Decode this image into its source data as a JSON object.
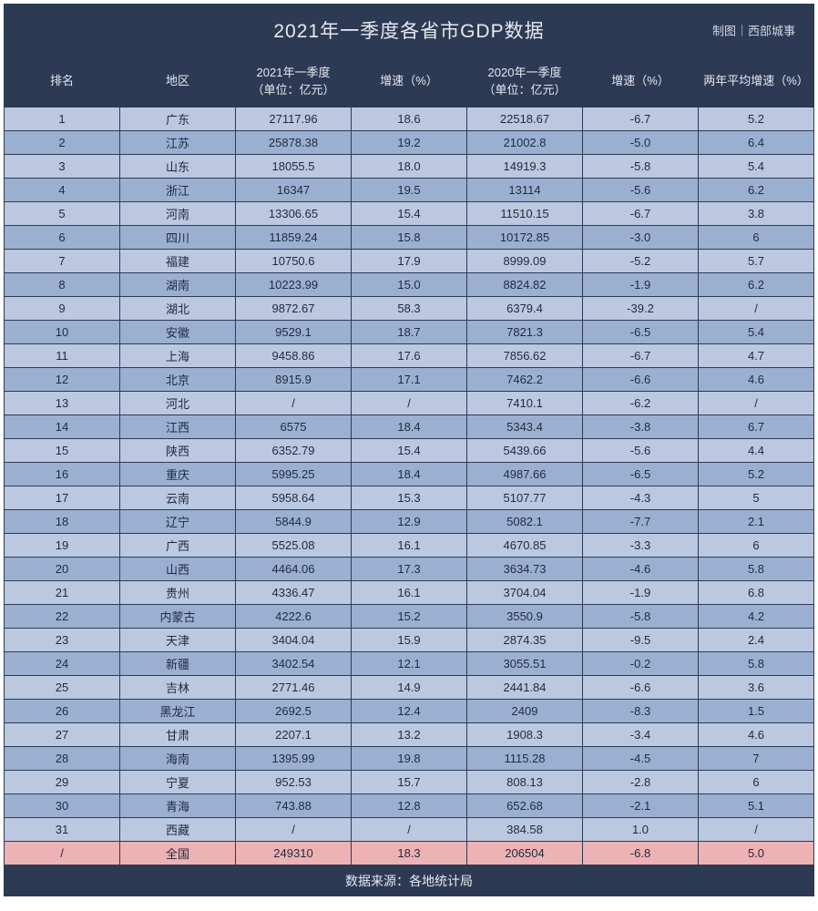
{
  "title": "2021年一季度各省市GDP数据",
  "credit": "制图｜西部城事",
  "source": "数据来源：各地统计局",
  "columns": [
    "排名",
    "地区",
    "2021年一季度\n（单位：亿元）",
    "增速（%）",
    "2020年一季度\n（单位：亿元）",
    "增速（%）",
    "两年平均增速（%）"
  ],
  "col_widths_class": [
    "c0",
    "c1",
    "c2",
    "c3",
    "c4",
    "c5",
    "c6"
  ],
  "colors": {
    "header_bg": "#2d3a54",
    "header_text": "#e6e9f0",
    "row_light": "#bcc8e0",
    "row_dark": "#9bb0d1",
    "row_total": "#edb2b4",
    "border": "#2d3a54"
  },
  "font_sizes": {
    "title": 21,
    "header": 13,
    "cell": 13,
    "source": 14
  },
  "rows": [
    {
      "rank": "1",
      "region": "广东",
      "gdp2021": "27117.96",
      "growth2021": "18.6",
      "gdp2020": "22518.67",
      "growth2020": "-6.7",
      "avg": "5.2"
    },
    {
      "rank": "2",
      "region": "江苏",
      "gdp2021": "25878.38",
      "growth2021": "19.2",
      "gdp2020": "21002.8",
      "growth2020": "-5.0",
      "avg": "6.4"
    },
    {
      "rank": "3",
      "region": "山东",
      "gdp2021": "18055.5",
      "growth2021": "18.0",
      "gdp2020": "14919.3",
      "growth2020": "-5.8",
      "avg": "5.4"
    },
    {
      "rank": "4",
      "region": "浙江",
      "gdp2021": "16347",
      "growth2021": "19.5",
      "gdp2020": "13114",
      "growth2020": "-5.6",
      "avg": "6.2"
    },
    {
      "rank": "5",
      "region": "河南",
      "gdp2021": "13306.65",
      "growth2021": "15.4",
      "gdp2020": "11510.15",
      "growth2020": "-6.7",
      "avg": "3.8"
    },
    {
      "rank": "6",
      "region": "四川",
      "gdp2021": "11859.24",
      "growth2021": "15.8",
      "gdp2020": "10172.85",
      "growth2020": "-3.0",
      "avg": "6"
    },
    {
      "rank": "7",
      "region": "福建",
      "gdp2021": "10750.6",
      "growth2021": "17.9",
      "gdp2020": "8999.09",
      "growth2020": "-5.2",
      "avg": "5.7"
    },
    {
      "rank": "8",
      "region": "湖南",
      "gdp2021": "10223.99",
      "growth2021": "15.0",
      "gdp2020": "8824.82",
      "growth2020": "-1.9",
      "avg": "6.2"
    },
    {
      "rank": "9",
      "region": "湖北",
      "gdp2021": "9872.67",
      "growth2021": "58.3",
      "gdp2020": "6379.4",
      "growth2020": "-39.2",
      "avg": "/"
    },
    {
      "rank": "10",
      "region": "安徽",
      "gdp2021": "9529.1",
      "growth2021": "18.7",
      "gdp2020": "7821.3",
      "growth2020": "-6.5",
      "avg": "5.4"
    },
    {
      "rank": "11",
      "region": "上海",
      "gdp2021": "9458.86",
      "growth2021": "17.6",
      "gdp2020": "7856.62",
      "growth2020": "-6.7",
      "avg": "4.7"
    },
    {
      "rank": "12",
      "region": "北京",
      "gdp2021": "8915.9",
      "growth2021": "17.1",
      "gdp2020": "7462.2",
      "growth2020": "-6.6",
      "avg": "4.6"
    },
    {
      "rank": "13",
      "region": "河北",
      "gdp2021": "/",
      "growth2021": "/",
      "gdp2020": "7410.1",
      "growth2020": "-6.2",
      "avg": "/"
    },
    {
      "rank": "14",
      "region": "江西",
      "gdp2021": "6575",
      "growth2021": "18.4",
      "gdp2020": "5343.4",
      "growth2020": "-3.8",
      "avg": "6.7"
    },
    {
      "rank": "15",
      "region": "陕西",
      "gdp2021": "6352.79",
      "growth2021": "15.4",
      "gdp2020": "5439.66",
      "growth2020": "-5.6",
      "avg": "4.4"
    },
    {
      "rank": "16",
      "region": "重庆",
      "gdp2021": "5995.25",
      "growth2021": "18.4",
      "gdp2020": "4987.66",
      "growth2020": "-6.5",
      "avg": "5.2"
    },
    {
      "rank": "17",
      "region": "云南",
      "gdp2021": "5958.64",
      "growth2021": "15.3",
      "gdp2020": "5107.77",
      "growth2020": "-4.3",
      "avg": "5"
    },
    {
      "rank": "18",
      "region": "辽宁",
      "gdp2021": "5844.9",
      "growth2021": "12.9",
      "gdp2020": "5082.1",
      "growth2020": "-7.7",
      "avg": "2.1"
    },
    {
      "rank": "19",
      "region": "广西",
      "gdp2021": "5525.08",
      "growth2021": "16.1",
      "gdp2020": "4670.85",
      "growth2020": "-3.3",
      "avg": "6"
    },
    {
      "rank": "20",
      "region": "山西",
      "gdp2021": "4464.06",
      "growth2021": "17.3",
      "gdp2020": "3634.73",
      "growth2020": "-4.6",
      "avg": "5.8"
    },
    {
      "rank": "21",
      "region": "贵州",
      "gdp2021": "4336.47",
      "growth2021": "16.1",
      "gdp2020": "3704.04",
      "growth2020": "-1.9",
      "avg": "6.8"
    },
    {
      "rank": "22",
      "region": "内蒙古",
      "gdp2021": "4222.6",
      "growth2021": "15.2",
      "gdp2020": "3550.9",
      "growth2020": "-5.8",
      "avg": "4.2"
    },
    {
      "rank": "23",
      "region": "天津",
      "gdp2021": "3404.04",
      "growth2021": "15.9",
      "gdp2020": "2874.35",
      "growth2020": "-9.5",
      "avg": "2.4"
    },
    {
      "rank": "24",
      "region": "新疆",
      "gdp2021": "3402.54",
      "growth2021": "12.1",
      "gdp2020": "3055.51",
      "growth2020": "-0.2",
      "avg": "5.8"
    },
    {
      "rank": "25",
      "region": "吉林",
      "gdp2021": "2771.46",
      "growth2021": "14.9",
      "gdp2020": "2441.84",
      "growth2020": "-6.6",
      "avg": "3.6"
    },
    {
      "rank": "26",
      "region": "黑龙江",
      "gdp2021": "2692.5",
      "growth2021": "12.4",
      "gdp2020": "2409",
      "growth2020": "-8.3",
      "avg": "1.5"
    },
    {
      "rank": "27",
      "region": "甘肃",
      "gdp2021": "2207.1",
      "growth2021": "13.2",
      "gdp2020": "1908.3",
      "growth2020": "-3.4",
      "avg": "4.6"
    },
    {
      "rank": "28",
      "region": "海南",
      "gdp2021": "1395.99",
      "growth2021": "19.8",
      "gdp2020": "1115.28",
      "growth2020": "-4.5",
      "avg": "7"
    },
    {
      "rank": "29",
      "region": "宁夏",
      "gdp2021": "952.53",
      "growth2021": "15.7",
      "gdp2020": "808.13",
      "growth2020": "-2.8",
      "avg": "6"
    },
    {
      "rank": "30",
      "region": "青海",
      "gdp2021": "743.88",
      "growth2021": "12.8",
      "gdp2020": "652.68",
      "growth2020": "-2.1",
      "avg": "5.1"
    },
    {
      "rank": "31",
      "region": "西藏",
      "gdp2021": "/",
      "growth2021": "/",
      "gdp2020": "384.58",
      "growth2020": "1.0",
      "avg": "/"
    }
  ],
  "total_row": {
    "rank": "/",
    "region": "全国",
    "gdp2021": "249310",
    "growth2021": "18.3",
    "gdp2020": "206504",
    "growth2020": "-6.8",
    "avg": "5.0"
  }
}
